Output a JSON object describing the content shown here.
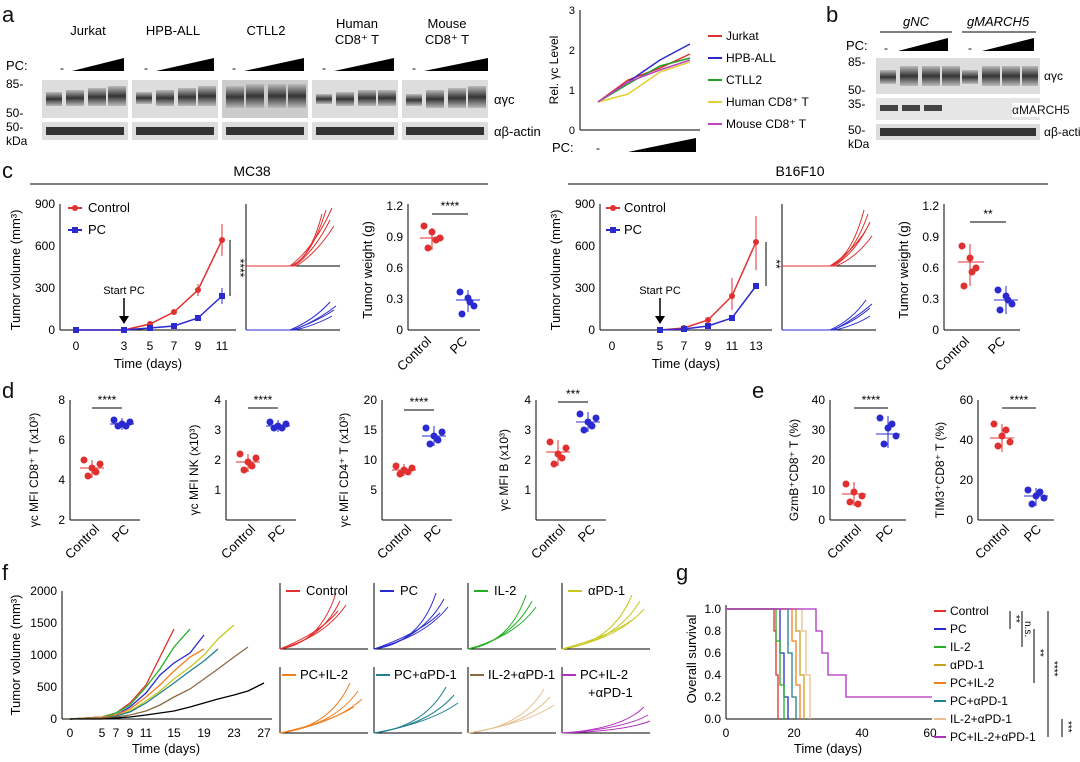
{
  "panels": {
    "a": {
      "label": "a",
      "blot": {
        "cell_lines": [
          "Jurkat",
          "HPB-ALL",
          "CTLL2",
          "Human CD8⁺ T",
          "Mouse CD8⁺ T"
        ],
        "pc_label": "PC:",
        "minus": "-",
        "markers": [
          "85-",
          "50-",
          "50-"
        ],
        "kda": "kDa",
        "antibodies": [
          "αγc",
          "αβ-actin"
        ]
      },
      "line_chart": {
        "ylabel": "Rel. γc Level",
        "yticks": [
          "0",
          "1",
          "2",
          "3"
        ],
        "pc_label": "PC:",
        "minus": "-",
        "legend": [
          "Jurkat",
          "HPB-ALL",
          "CTLL2",
          "Human CD8⁺ T",
          "Mouse CD8⁺ T"
        ],
        "colors": [
          "#e03030",
          "#2a2ad0",
          "#22a022",
          "#e0d030",
          "#c040c0"
        ]
      }
    },
    "b": {
      "label": "b",
      "groups": [
        "gNC",
        "gMARCH5"
      ],
      "pc_label": "PC:",
      "minus": "-",
      "markers": [
        "85-",
        "50-",
        "35-",
        "50-"
      ],
      "kda": "kDa",
      "antibodies": [
        "αγc",
        "αMARCH5",
        "αβ-actin"
      ]
    },
    "c": {
      "label": "c",
      "mc38": {
        "title": "MC38",
        "ylabel": "Tumor volume (mm³)",
        "xlabel": "Time (days)",
        "yticks": [
          "0",
          "300",
          "600",
          "900"
        ],
        "xticks": [
          "0",
          "3",
          "5",
          "7",
          "9",
          "11"
        ],
        "legend": [
          "Control",
          "PC"
        ],
        "annotation": "Start PC",
        "sig": "****",
        "weight_ylabel": "Tumor weight (g)",
        "weight_yticks": [
          "0",
          "0.3",
          "0.6",
          "0.9",
          "1.2"
        ],
        "weight_xticks": [
          "Control",
          "PC"
        ],
        "weight_sig": "****"
      },
      "b16": {
        "title": "B16F10",
        "ylabel": "Tumor volume (mm³)",
        "xlabel": "Time (days)",
        "yticks": [
          "0",
          "300",
          "600",
          "900"
        ],
        "xticks": [
          "0",
          "5",
          "7",
          "9",
          "11",
          "13"
        ],
        "legend": [
          "Control",
          "PC"
        ],
        "annotation": "Start PC",
        "sig": "**",
        "weight_ylabel": "Tumor weight (g)",
        "weight_yticks": [
          "0",
          "0.3",
          "0.6",
          "0.9",
          "1.2"
        ],
        "weight_xticks": [
          "Control",
          "PC"
        ],
        "weight_sig": "**"
      }
    },
    "d": {
      "label": "d",
      "plots": [
        {
          "ylabel": "γc MFI CD8⁺ T (x10³)",
          "yticks": [
            "2",
            "4",
            "6",
            "8"
          ],
          "sig": "****"
        },
        {
          "ylabel": "γc MFI NK (x10³)",
          "yticks": [
            "1",
            "2",
            "3",
            "4"
          ],
          "sig": "****"
        },
        {
          "ylabel": "γc MFI CD4⁺ T (x10³)",
          "yticks": [
            "5",
            "10",
            "15",
            "20"
          ],
          "sig": "****"
        },
        {
          "ylabel": "γc MFI B (x10³)",
          "yticks": [
            "1",
            "2",
            "3",
            "4"
          ],
          "sig": "***"
        }
      ],
      "xticks": [
        "Control",
        "PC"
      ]
    },
    "e": {
      "label": "e",
      "plots": [
        {
          "ylabel": "GzmB⁺CD8⁺ T (%)",
          "yticks": [
            "0",
            "10",
            "20",
            "30",
            "40"
          ],
          "sig": "****"
        },
        {
          "ylabel": "TIM3⁺CD8⁺ T (%)",
          "yticks": [
            "0",
            "20",
            "40",
            "60"
          ],
          "sig": "****"
        }
      ],
      "xticks": [
        "Control",
        "PC"
      ]
    },
    "f": {
      "label": "f",
      "ylabel": "Tumor volume (mm³)",
      "xlabel": "Time (days)",
      "yticks": [
        "0",
        "500",
        "1000",
        "1500",
        "2000"
      ],
      "xticks": [
        "0",
        "5",
        "7",
        "9",
        "11",
        "15",
        "19",
        "23",
        "27"
      ],
      "spaghetti": [
        "Control",
        "PC",
        "IL-2",
        "αPD-1",
        "PC+IL-2",
        "PC+αPD-1",
        "IL-2+αPD-1",
        "PC+IL-2",
        "+αPD-1"
      ],
      "colors": [
        "#e03030",
        "#2a2ad0",
        "#22b022",
        "#c8c820",
        "#f08020",
        "#208090",
        "#e8c090",
        "#b030c0"
      ]
    },
    "g": {
      "label": "g",
      "ylabel": "Overall survival",
      "xlabel": "Time (days)",
      "yticks": [
        "0.0",
        "0.2",
        "0.4",
        "0.6",
        "0.8",
        "1.0"
      ],
      "xticks": [
        "0",
        "20",
        "40",
        "60"
      ],
      "legend": [
        "Control",
        "PC",
        "IL-2",
        "αPD-1",
        "PC+IL-2",
        "PC+αPD-1",
        "IL-2+αPD-1",
        "PC+IL-2+αPD-1"
      ],
      "sigs": [
        "**",
        "n.s.",
        "**",
        "****",
        "***"
      ]
    }
  }
}
